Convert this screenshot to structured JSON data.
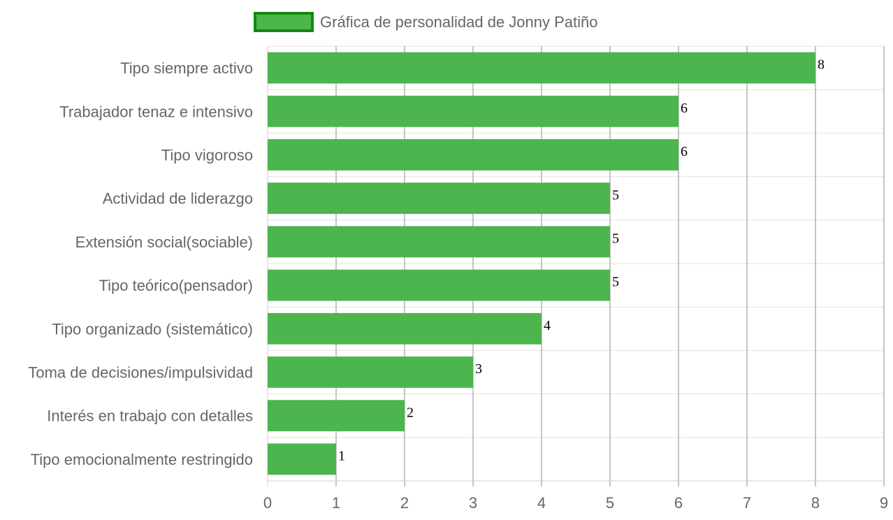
{
  "chart_data": {
    "type": "bar",
    "orientation": "horizontal",
    "categories": [
      "Tipo siempre activo",
      "Trabajador tenaz e intensivo",
      "Tipo vigoroso",
      "Actividad de liderazgo",
      "Extensión social(sociable)",
      "Tipo teórico(pensador)",
      "Tipo organizado (sistemático)",
      "Toma de decisiones/impulsividad",
      "Interés en trabajo con detalles",
      "Tipo emocionalmente restringido"
    ],
    "series": [
      {
        "name": "Gráfica de personalidad de Jonny Patiño",
        "values": [
          8,
          6,
          6,
          5,
          5,
          5,
          4,
          3,
          2,
          1
        ],
        "color": "#4db54d",
        "border_color": "#118a11"
      }
    ],
    "xlim": [
      0,
      9
    ],
    "x_ticks": [
      "0",
      "1",
      "2",
      "3",
      "4",
      "5",
      "6",
      "7",
      "8",
      "9"
    ],
    "grid": true,
    "legend_position": "top",
    "data_labels": [
      "8",
      "6",
      "6",
      "5",
      "5",
      "5",
      "4",
      "3",
      "2",
      "1"
    ]
  }
}
